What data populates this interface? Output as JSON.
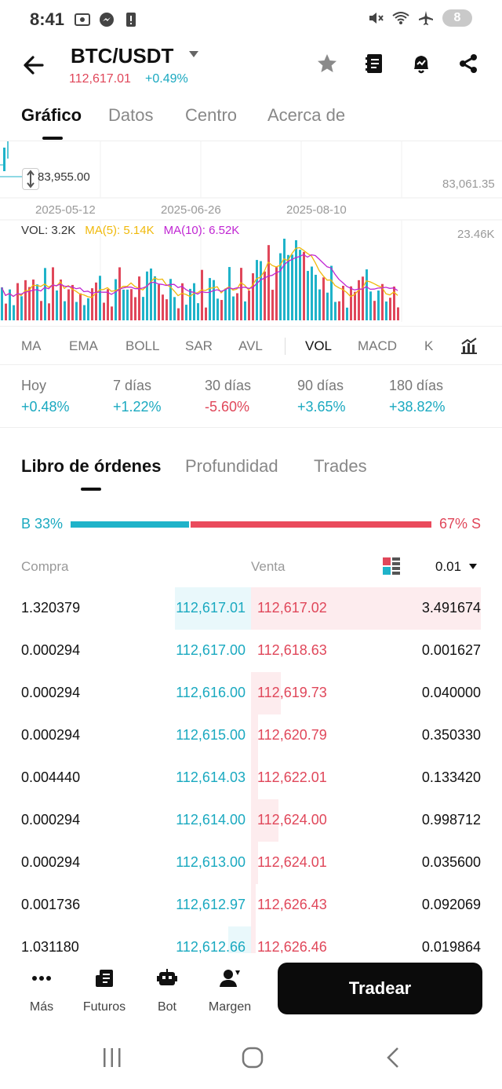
{
  "status": {
    "time": "8:41",
    "battery": "8"
  },
  "header": {
    "pair": "BTC/USDT",
    "price": "112,617.01",
    "change": "+0.49%"
  },
  "main_tabs": [
    {
      "label": "Gráfico",
      "active": true
    },
    {
      "label": "Datos",
      "active": false
    },
    {
      "label": "Centro",
      "active": false
    },
    {
      "label": "Acerca de",
      "active": false
    }
  ],
  "chart": {
    "marker_price": "83,955.00",
    "right_price": "83,061.35",
    "dates": [
      "2025-05-12",
      "2025-06-26",
      "2025-08-10"
    ],
    "vol_max": "23.46K",
    "legend": {
      "vol": "VOL: 3.2K",
      "ma5": "MA(5): 5.14K",
      "ma10": "MA(10): 6.52K"
    },
    "colors": {
      "up": "#1fb3c9",
      "down": "#e0475a",
      "ma5": "#f0b90b",
      "ma10": "#c026d3"
    }
  },
  "indicators": [
    "MA",
    "EMA",
    "BOLL",
    "SAR",
    "AVL",
    "VOL",
    "MACD",
    "K"
  ],
  "active_indicator": "VOL",
  "performance": [
    {
      "label": "Hoy",
      "value": "+0.48%",
      "dir": "pos"
    },
    {
      "label": "7 días",
      "value": "+1.22%",
      "dir": "pos"
    },
    {
      "label": "30 días",
      "value": "-5.60%",
      "dir": "neg"
    },
    {
      "label": "90 días",
      "value": "+3.65%",
      "dir": "pos"
    },
    {
      "label": "180 días",
      "value": "+38.82%",
      "dir": "pos"
    }
  ],
  "sub_tabs": [
    {
      "label": "Libro de órdenes",
      "active": true
    },
    {
      "label": "Profundidad",
      "active": false
    },
    {
      "label": "Trades",
      "active": false
    }
  ],
  "ratio": {
    "buy_label": "B 33%",
    "sell_label": "67% S",
    "buy_fraction": 0.33
  },
  "orderbook_header": {
    "buy": "Compra",
    "sell": "Venta",
    "precision": "0.01"
  },
  "orderbook": [
    {
      "buy_qty": "1.320379",
      "buy_price": "112,617.01",
      "sell_price": "112,617.02",
      "sell_qty": "3.491674",
      "buy_depth": 0.33,
      "sell_depth": 1.0
    },
    {
      "buy_qty": "0.000294",
      "buy_price": "112,617.00",
      "sell_price": "112,618.63",
      "sell_qty": "0.001627",
      "buy_depth": 0.0,
      "sell_depth": 0.0
    },
    {
      "buy_qty": "0.000294",
      "buy_price": "112,616.00",
      "sell_price": "112,619.73",
      "sell_qty": "0.040000",
      "buy_depth": 0.0,
      "sell_depth": 0.13
    },
    {
      "buy_qty": "0.000294",
      "buy_price": "112,615.00",
      "sell_price": "112,620.79",
      "sell_qty": "0.350330",
      "buy_depth": 0.0,
      "sell_depth": 0.03
    },
    {
      "buy_qty": "0.004440",
      "buy_price": "112,614.03",
      "sell_price": "112,622.01",
      "sell_qty": "0.133420",
      "buy_depth": 0.0,
      "sell_depth": 0.03
    },
    {
      "buy_qty": "0.000294",
      "buy_price": "112,614.00",
      "sell_price": "112,624.00",
      "sell_qty": "0.998712",
      "buy_depth": 0.0,
      "sell_depth": 0.12
    },
    {
      "buy_qty": "0.000294",
      "buy_price": "112,613.00",
      "sell_price": "112,624.01",
      "sell_qty": "0.035600",
      "buy_depth": 0.0,
      "sell_depth": 0.03
    },
    {
      "buy_qty": "0.001736",
      "buy_price": "112,612.97",
      "sell_price": "112,626.43",
      "sell_qty": "0.092069",
      "buy_depth": 0.0,
      "sell_depth": 0.02
    },
    {
      "buy_qty": "1.031180",
      "buy_price": "112,612.66",
      "sell_price": "112,626.46",
      "sell_qty": "0.019864",
      "buy_depth": 0.1,
      "sell_depth": 0.02
    }
  ],
  "bottom_nav": [
    {
      "label": "Más",
      "icon": "dots-icon"
    },
    {
      "label": "Futuros",
      "icon": "futures-icon"
    },
    {
      "label": "Bot",
      "icon": "bot-icon"
    },
    {
      "label": "Margen",
      "icon": "margin-icon"
    }
  ],
  "trade_button": "Tradear"
}
